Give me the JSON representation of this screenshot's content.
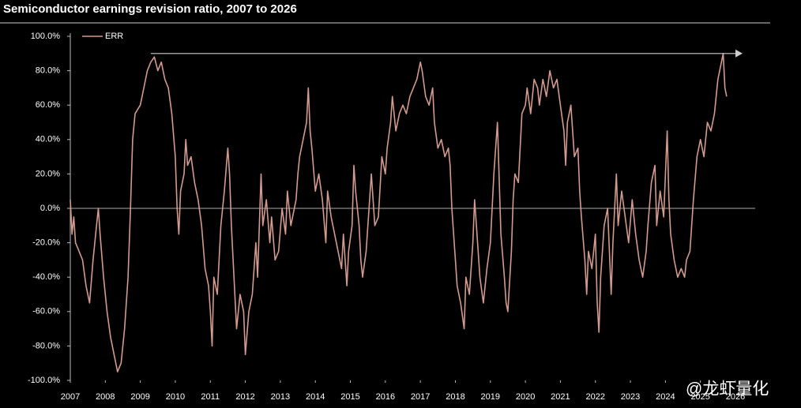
{
  "chart_data": {
    "type": "line",
    "title": "Semiconductor earnings revision ratio, 2007 to 2026",
    "watermark": "@龙虾量化",
    "x": [
      2007.0,
      2007.05,
      2007.1,
      2007.15,
      2007.25,
      2007.35,
      2007.45,
      2007.55,
      2007.65,
      2007.75,
      2007.8,
      2007.85,
      2007.95,
      2008.05,
      2008.15,
      2008.25,
      2008.35,
      2008.45,
      2008.55,
      2008.65,
      2008.72,
      2008.78,
      2008.85,
      2009.0,
      2009.1,
      2009.2,
      2009.3,
      2009.4,
      2009.5,
      2009.6,
      2009.7,
      2009.8,
      2009.9,
      2010.0,
      2010.05,
      2010.1,
      2010.15,
      2010.25,
      2010.3,
      2010.35,
      2010.45,
      2010.55,
      2010.65,
      2010.75,
      2010.85,
      2010.95,
      2011.0,
      2011.05,
      2011.1,
      2011.2,
      2011.3,
      2011.4,
      2011.5,
      2011.55,
      2011.6,
      2011.7,
      2011.75,
      2011.85,
      2011.95,
      2012.0,
      2012.1,
      2012.2,
      2012.3,
      2012.35,
      2012.45,
      2012.5,
      2012.6,
      2012.7,
      2012.75,
      2012.85,
      2012.95,
      2013.05,
      2013.15,
      2013.2,
      2013.3,
      2013.45,
      2013.5,
      2013.55,
      2013.65,
      2013.75,
      2013.8,
      2013.85,
      2013.9,
      2014.0,
      2014.1,
      2014.2,
      2014.3,
      2014.35,
      2014.45,
      2014.55,
      2014.65,
      2014.75,
      2014.8,
      2014.9,
      2014.95,
      2015.05,
      2015.1,
      2015.15,
      2015.25,
      2015.3,
      2015.35,
      2015.45,
      2015.5,
      2015.6,
      2015.7,
      2015.8,
      2015.9,
      2016.0,
      2016.05,
      2016.15,
      2016.2,
      2016.3,
      2016.4,
      2016.5,
      2016.6,
      2016.7,
      2016.8,
      2016.9,
      2017.0,
      2017.05,
      2017.15,
      2017.25,
      2017.35,
      2017.4,
      2017.5,
      2017.6,
      2017.7,
      2017.8,
      2017.85,
      2017.9,
      2018.0,
      2018.05,
      2018.15,
      2018.25,
      2018.3,
      2018.4,
      2018.5,
      2018.55,
      2018.6,
      2018.7,
      2018.8,
      2018.9,
      2019.0,
      2019.1,
      2019.2,
      2019.3,
      2019.4,
      2019.45,
      2019.5,
      2019.6,
      2019.65,
      2019.7,
      2019.8,
      2019.9,
      2020.0,
      2020.05,
      2020.15,
      2020.25,
      2020.35,
      2020.4,
      2020.5,
      2020.6,
      2020.7,
      2020.8,
      2020.9,
      2021.0,
      2021.1,
      2021.15,
      2021.2,
      2021.3,
      2021.4,
      2021.5,
      2021.55,
      2021.6,
      2021.7,
      2021.75,
      2021.8,
      2021.9,
      2022.0,
      2022.05,
      2022.1,
      2022.15,
      2022.25,
      2022.35,
      2022.45,
      2022.5,
      2022.6,
      2022.65,
      2022.75,
      2022.85,
      2022.95,
      2023.05,
      2023.15,
      2023.25,
      2023.35,
      2023.45,
      2023.5,
      2023.6,
      2023.7,
      2023.75,
      2023.85,
      2023.95,
      2024.05,
      2024.1,
      2024.15,
      2024.25,
      2024.35,
      2024.45,
      2024.55,
      2024.6,
      2024.7,
      2024.75,
      2024.8,
      2024.9,
      2025.0,
      2025.1,
      2025.2,
      2025.3,
      2025.4,
      2025.5,
      2025.6,
      2025.65,
      2025.7,
      2025.75
    ],
    "series": [
      {
        "name": "ERR",
        "color": "#d39a8e",
        "values": [
          5,
          -15,
          -5,
          -20,
          -25,
          -30,
          -45,
          -55,
          -30,
          -10,
          0,
          -15,
          -40,
          -60,
          -75,
          -85,
          -95,
          -90,
          -70,
          -40,
          0,
          40,
          55,
          60,
          70,
          80,
          85,
          88,
          80,
          85,
          75,
          70,
          55,
          30,
          0,
          -15,
          10,
          20,
          40,
          25,
          30,
          15,
          5,
          -10,
          -35,
          -45,
          -60,
          -80,
          -40,
          -50,
          -10,
          10,
          35,
          20,
          -10,
          -50,
          -70,
          -50,
          -60,
          -85,
          -60,
          -50,
          -20,
          -40,
          20,
          -10,
          5,
          -20,
          -5,
          -30,
          -25,
          0,
          -15,
          10,
          -10,
          5,
          20,
          30,
          40,
          50,
          70,
          45,
          35,
          10,
          20,
          5,
          -20,
          10,
          -5,
          -15,
          -25,
          -35,
          -15,
          -45,
          -25,
          -10,
          25,
          10,
          -10,
          -30,
          -40,
          -25,
          -10,
          20,
          -10,
          -5,
          30,
          20,
          35,
          50,
          65,
          45,
          55,
          60,
          55,
          65,
          70,
          75,
          85,
          80,
          65,
          60,
          70,
          50,
          35,
          40,
          30,
          35,
          25,
          0,
          -30,
          -45,
          -55,
          -70,
          -40,
          -50,
          -20,
          5,
          -10,
          -40,
          -55,
          -35,
          -20,
          20,
          50,
          -15,
          -40,
          -55,
          -60,
          -25,
          5,
          20,
          15,
          55,
          60,
          70,
          55,
          75,
          70,
          60,
          75,
          65,
          80,
          70,
          75,
          60,
          45,
          25,
          50,
          60,
          30,
          35,
          10,
          -5,
          -30,
          -50,
          -25,
          -35,
          -15,
          -55,
          -72,
          -40,
          -10,
          0,
          -50,
          -20,
          20,
          -10,
          10,
          -5,
          -20,
          5,
          -15,
          -30,
          -40,
          -25,
          -10,
          15,
          25,
          -10,
          10,
          -5,
          45,
          5,
          -15,
          -30,
          -40,
          -35,
          -40,
          -30,
          -25,
          -10,
          5,
          30,
          40,
          30,
          50,
          45,
          55,
          75,
          85,
          90,
          70,
          65
        ]
      }
    ],
    "reference_arrow": {
      "from": 2009.3,
      "to": 2026,
      "value": 90
    },
    "xlim": [
      2007,
      2026
    ],
    "xticks": [
      2007,
      2008,
      2009,
      2010,
      2011,
      2012,
      2013,
      2014,
      2015,
      2016,
      2017,
      2018,
      2019,
      2020,
      2021,
      2022,
      2023,
      2024,
      2025,
      2026
    ],
    "ylim": [
      -100,
      100
    ],
    "yticks": [
      {
        "value": -100,
        "label": "-100.0%"
      },
      {
        "value": -80,
        "label": "-80.0%"
      },
      {
        "value": -60,
        "label": "-60.0%"
      },
      {
        "value": -40,
        "label": "-40.0%"
      },
      {
        "value": -20,
        "label": "-20.0%"
      },
      {
        "value": 0,
        "label": "0.0%"
      },
      {
        "value": 20,
        "label": "20.0%"
      },
      {
        "value": 40,
        "label": "40.0%"
      },
      {
        "value": 60,
        "label": "60.0%"
      },
      {
        "value": 80,
        "label": "80.0%"
      },
      {
        "value": 100,
        "label": "100.0%"
      }
    ],
    "zero_line": true,
    "legend": "top-left"
  }
}
